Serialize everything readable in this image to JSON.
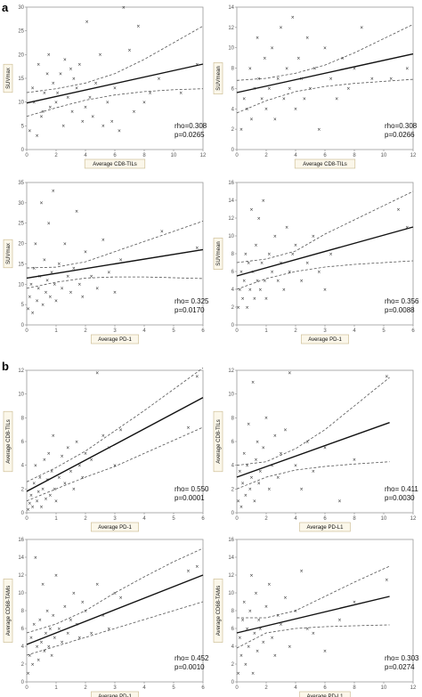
{
  "panel_labels": [
    {
      "text": "a"
    },
    {
      "text": "b"
    }
  ],
  "chart_data": [
    {
      "type": "scatter",
      "panel": "a",
      "xlabel": "Average CD8-TILs",
      "ylabel": "SUVmax",
      "xlim": [
        0,
        12
      ],
      "ylim": [
        0,
        30
      ],
      "xticks": [
        0,
        2,
        4,
        6,
        8,
        10,
        12
      ],
      "yticks": [
        0,
        5,
        10,
        15,
        20,
        25,
        30
      ],
      "fit": {
        "x": [
          0,
          12
        ],
        "y": [
          9.8,
          18.0
        ]
      },
      "ci_upper": {
        "x": [
          0,
          2,
          4,
          6,
          8,
          10,
          12
        ],
        "y": [
          12.0,
          12.8,
          14.0,
          16.0,
          19.0,
          22.5,
          26.0
        ]
      },
      "ci_lower": {
        "x": [
          0,
          2,
          4,
          6,
          8,
          10,
          12
        ],
        "y": [
          7.0,
          8.8,
          10.4,
          11.5,
          12.2,
          12.6,
          12.8
        ]
      },
      "annotations": [
        "rho=0.308",
        "p=0.0265"
      ],
      "points": {
        "x": [
          0.2,
          0.4,
          0.5,
          0.7,
          0.8,
          1.0,
          1.1,
          1.2,
          1.4,
          1.5,
          1.6,
          1.8,
          2.0,
          2.1,
          2.3,
          2.5,
          2.6,
          2.8,
          3.0,
          3.1,
          3.2,
          3.4,
          3.6,
          3.8,
          4.0,
          4.1,
          4.3,
          4.5,
          4.7,
          5.0,
          5.2,
          5.5,
          5.8,
          6.0,
          6.3,
          6.6,
          7.0,
          7.3,
          7.6,
          8.0,
          8.4,
          9.0,
          10.5,
          11.6
        ],
        "y": [
          4,
          13,
          10,
          3,
          18,
          7,
          8,
          12,
          16,
          20,
          9,
          14,
          10,
          12,
          16,
          5,
          19,
          11,
          17,
          8,
          15,
          13,
          18,
          6,
          9,
          27,
          11,
          7,
          14,
          20,
          5,
          10,
          6,
          13,
          4,
          30,
          21,
          8,
          26,
          10,
          12,
          15,
          12,
          18
        ]
      }
    },
    {
      "type": "scatter",
      "panel": "a",
      "xlabel": "Average CD8-TILs",
      "ylabel": "SUVmean",
      "xlim": [
        0,
        12
      ],
      "ylim": [
        0,
        14
      ],
      "xticks": [
        0,
        2,
        4,
        6,
        8,
        10,
        12
      ],
      "yticks": [
        0,
        2,
        4,
        6,
        8,
        10,
        12,
        14
      ],
      "fit": {
        "x": [
          0,
          12
        ],
        "y": [
          5.6,
          9.4
        ]
      },
      "ci_upper": {
        "x": [
          0,
          2,
          4,
          6,
          8,
          10,
          12
        ],
        "y": [
          6.8,
          7.0,
          7.5,
          8.3,
          9.5,
          10.9,
          12.3
        ]
      },
      "ci_lower": {
        "x": [
          0,
          2,
          4,
          6,
          8,
          10,
          12
        ],
        "y": [
          3.6,
          4.8,
          5.7,
          6.2,
          6.5,
          6.7,
          6.9
        ]
      },
      "annotations": [
        "rho=0.308",
        "p=0.0266"
      ],
      "points": {
        "x": [
          0.3,
          0.5,
          0.7,
          0.9,
          1.0,
          1.2,
          1.4,
          1.5,
          1.7,
          1.9,
          2.0,
          2.2,
          2.4,
          2.6,
          2.8,
          3.0,
          3.2,
          3.4,
          3.6,
          3.8,
          4.0,
          4.2,
          4.4,
          4.6,
          4.8,
          5.0,
          5.3,
          5.6,
          6.0,
          6.4,
          6.8,
          7.2,
          7.6,
          8.0,
          8.5,
          9.2,
          10.5,
          11.6
        ],
        "y": [
          2,
          5,
          4,
          8,
          3,
          6,
          11,
          7,
          5,
          9,
          4,
          6,
          10,
          3,
          7,
          12,
          5,
          8,
          6,
          13,
          4,
          9,
          7,
          5,
          11,
          6,
          8,
          2,
          10,
          7,
          5,
          9,
          6,
          8,
          12,
          7,
          7,
          8
        ]
      }
    },
    {
      "type": "scatter",
      "panel": "a",
      "xlabel": "Average PD-1",
      "ylabel": "SUVmax",
      "xlim": [
        0,
        6
      ],
      "ylim": [
        0,
        35
      ],
      "xticks": [
        0,
        1,
        2,
        3,
        4,
        5,
        6
      ],
      "yticks": [
        0,
        5,
        10,
        15,
        20,
        25,
        30,
        35
      ],
      "fit": {
        "x": [
          0,
          6
        ],
        "y": [
          11.5,
          18.5
        ]
      },
      "ci_upper": {
        "x": [
          0,
          1,
          2,
          3,
          4,
          5,
          6
        ],
        "y": [
          14.0,
          14.2,
          15.5,
          18.0,
          20.5,
          23.0,
          25.5
        ]
      },
      "ci_lower": {
        "x": [
          0,
          1,
          2,
          3,
          4,
          5,
          6
        ],
        "y": [
          9.0,
          10.5,
          11.5,
          11.8,
          11.8,
          11.6,
          11.4
        ]
      },
      "annotations": [
        "rho= 0.325",
        "p=0.0170"
      ],
      "points": {
        "x": [
          0.05,
          0.1,
          0.15,
          0.2,
          0.25,
          0.3,
          0.35,
          0.4,
          0.45,
          0.5,
          0.55,
          0.6,
          0.65,
          0.7,
          0.75,
          0.8,
          0.85,
          0.9,
          0.95,
          1.0,
          1.1,
          1.2,
          1.3,
          1.4,
          1.5,
          1.6,
          1.7,
          1.8,
          1.9,
          2.0,
          2.2,
          2.4,
          2.6,
          2.8,
          3.0,
          3.2,
          4.6,
          5.8
        ],
        "y": [
          4,
          7,
          10,
          3,
          14,
          20,
          6,
          9,
          12,
          30,
          5,
          16,
          8,
          11,
          25,
          7,
          13,
          33,
          10,
          6,
          15,
          9,
          20,
          12,
          8,
          14,
          28,
          10,
          7,
          18,
          12,
          9,
          21,
          13,
          8,
          16,
          23,
          19
        ]
      }
    },
    {
      "type": "scatter",
      "panel": "a",
      "xlabel": "Average PD-1",
      "ylabel": "SUVmean",
      "xlim": [
        0,
        6
      ],
      "ylim": [
        0,
        16
      ],
      "xticks": [
        0,
        1,
        2,
        3,
        4,
        5,
        6
      ],
      "yticks": [
        0,
        2,
        4,
        6,
        8,
        10,
        12,
        14,
        16
      ],
      "fit": {
        "x": [
          0,
          6
        ],
        "y": [
          5.5,
          11.0
        ]
      },
      "ci_upper": {
        "x": [
          0,
          1,
          2,
          3,
          4,
          5,
          6
        ],
        "y": [
          7.0,
          7.4,
          8.3,
          10.2,
          11.8,
          13.4,
          15.0
        ]
      },
      "ci_lower": {
        "x": [
          0,
          1,
          2,
          3,
          4,
          5,
          6
        ],
        "y": [
          4.0,
          5.2,
          6.0,
          6.5,
          6.8,
          7.0,
          7.2
        ]
      },
      "annotations": [
        "rho= 0.356",
        "p=0.0088"
      ],
      "points": {
        "x": [
          0.05,
          0.1,
          0.15,
          0.2,
          0.25,
          0.3,
          0.35,
          0.4,
          0.45,
          0.5,
          0.55,
          0.6,
          0.65,
          0.7,
          0.75,
          0.8,
          0.85,
          0.9,
          0.95,
          1.0,
          1.1,
          1.2,
          1.3,
          1.4,
          1.5,
          1.6,
          1.7,
          1.8,
          1.9,
          2.0,
          2.2,
          2.4,
          2.6,
          2.8,
          3.0,
          3.2,
          5.5,
          5.8
        ],
        "y": [
          2,
          4,
          6,
          3,
          5,
          8,
          2,
          7,
          4,
          13,
          6,
          3,
          9,
          5,
          12,
          4,
          7,
          14,
          5,
          3,
          8,
          6,
          10,
          5,
          7,
          4,
          11,
          6,
          8,
          9,
          5,
          7,
          10,
          6,
          4,
          8,
          13,
          11
        ]
      }
    },
    {
      "type": "scatter",
      "panel": "b",
      "xlabel": "Average PD-1",
      "ylabel": "Average CD8-TILs",
      "xlim": [
        0,
        6
      ],
      "ylim": [
        0,
        12
      ],
      "xticks": [
        0,
        1,
        2,
        3,
        4,
        5,
        6
      ],
      "yticks": [
        0,
        2,
        4,
        6,
        8,
        10,
        12
      ],
      "fit": {
        "x": [
          0,
          6
        ],
        "y": [
          1.8,
          9.7
        ]
      },
      "ci_upper": {
        "x": [
          0,
          1,
          2,
          3,
          4,
          5,
          6
        ],
        "y": [
          2.6,
          3.8,
          5.2,
          6.9,
          8.6,
          10.4,
          12.2
        ]
      },
      "ci_lower": {
        "x": [
          0,
          1,
          2,
          3,
          4,
          5,
          6
        ],
        "y": [
          1.0,
          2.0,
          3.0,
          3.9,
          5.0,
          6.1,
          7.2
        ]
      },
      "annotations": [
        "rho= 0.550",
        "p=0.0001"
      ],
      "points": {
        "x": [
          0.05,
          0.1,
          0.15,
          0.2,
          0.25,
          0.3,
          0.35,
          0.4,
          0.45,
          0.5,
          0.55,
          0.6,
          0.65,
          0.7,
          0.75,
          0.8,
          0.85,
          0.9,
          0.95,
          1.0,
          1.1,
          1.2,
          1.3,
          1.4,
          1.5,
          1.6,
          1.7,
          1.8,
          1.9,
          2.0,
          2.2,
          2.4,
          2.6,
          2.8,
          3.0,
          3.2,
          5.5,
          5.8
        ],
        "y": [
          0.3,
          0.8,
          1.5,
          0.5,
          2.5,
          4.0,
          1.0,
          1.8,
          3.0,
          0.5,
          2.0,
          4.5,
          1.2,
          2.8,
          5.0,
          1.5,
          3.5,
          6.5,
          2.0,
          1.0,
          3.0,
          4.8,
          2.5,
          5.5,
          3.5,
          2.0,
          6.0,
          4.0,
          3.0,
          5.0,
          4.5,
          11.8,
          6.5,
          5.5,
          4.0,
          7.0,
          7.2,
          11.5
        ]
      }
    },
    {
      "type": "scatter",
      "panel": "b",
      "xlabel": "Average PD-L1",
      "ylabel": "Average CD8-TILs",
      "xlim": [
        0,
        12
      ],
      "ylim": [
        0,
        12
      ],
      "xticks": [
        0,
        2,
        4,
        6,
        8,
        10,
        12
      ],
      "yticks": [
        0,
        2,
        4,
        6,
        8,
        10,
        12
      ],
      "fit": {
        "x": [
          0,
          10.4
        ],
        "y": [
          3.0,
          7.6
        ]
      },
      "ci_upper": {
        "x": [
          0,
          2,
          4,
          6,
          8,
          10.4
        ],
        "y": [
          4.0,
          4.3,
          5.4,
          7.0,
          9.0,
          11.4
        ]
      },
      "ci_lower": {
        "x": [
          0,
          2,
          4,
          6,
          8,
          10.4
        ],
        "y": [
          2.0,
          3.0,
          3.6,
          3.9,
          4.1,
          4.3
        ]
      },
      "annotations": [
        "rho= 0.411",
        "p=0.0030"
      ],
      "points": {
        "x": [
          0.1,
          0.2,
          0.3,
          0.4,
          0.5,
          0.6,
          0.7,
          0.8,
          0.9,
          1.0,
          1.1,
          1.2,
          1.3,
          1.4,
          1.5,
          1.6,
          1.8,
          2.0,
          2.2,
          2.4,
          2.6,
          2.8,
          3.0,
          3.3,
          3.6,
          4.0,
          4.4,
          4.8,
          5.2,
          6.0,
          7.0,
          8.0,
          10.2
        ],
        "y": [
          1.0,
          3.5,
          0.5,
          2.5,
          5.0,
          1.5,
          4.0,
          7.5,
          2.0,
          3.0,
          11.0,
          1.0,
          4.5,
          6.0,
          2.5,
          3.5,
          5.5,
          8.0,
          2.0,
          4.0,
          6.5,
          3.0,
          5.0,
          7.0,
          11.8,
          4.0,
          2.0,
          6.0,
          3.5,
          5.5,
          1.0,
          4.5,
          11.5
        ]
      }
    },
    {
      "type": "scatter",
      "panel": "b",
      "xlabel": "Average PD-1",
      "ylabel": "Average CD68-TAMs",
      "xlim": [
        0,
        6
      ],
      "ylim": [
        0,
        16
      ],
      "xticks": [
        0,
        1,
        2,
        3,
        4,
        5,
        6
      ],
      "yticks": [
        0,
        2,
        4,
        6,
        8,
        10,
        12,
        14,
        16
      ],
      "fit": {
        "x": [
          0,
          6
        ],
        "y": [
          4.2,
          12.0
        ]
      },
      "ci_upper": {
        "x": [
          0,
          1,
          2,
          3,
          4,
          5,
          6
        ],
        "y": [
          5.5,
          6.5,
          8.0,
          10.0,
          11.8,
          13.5,
          15.0
        ]
      },
      "ci_lower": {
        "x": [
          0,
          1,
          2,
          3,
          4,
          5,
          6
        ],
        "y": [
          3.0,
          4.0,
          5.0,
          6.0,
          7.0,
          8.0,
          9.0
        ]
      },
      "annotations": [
        "rho= 0.452",
        "p=0.0010"
      ],
      "points": {
        "x": [
          0.05,
          0.1,
          0.15,
          0.2,
          0.25,
          0.3,
          0.35,
          0.4,
          0.45,
          0.5,
          0.55,
          0.6,
          0.65,
          0.7,
          0.75,
          0.8,
          0.85,
          0.9,
          0.95,
          1.0,
          1.1,
          1.2,
          1.3,
          1.4,
          1.5,
          1.6,
          1.7,
          1.8,
          1.9,
          2.0,
          2.2,
          2.4,
          2.6,
          2.8,
          3.0,
          3.2,
          5.5,
          5.8
        ],
        "y": [
          1.0,
          3.0,
          5.0,
          2.0,
          6.5,
          14.0,
          4.0,
          2.5,
          7.0,
          4.5,
          11.0,
          3.5,
          5.5,
          8.0,
          4.0,
          6.0,
          3.0,
          7.5,
          5.0,
          12.0,
          6.0,
          4.5,
          8.5,
          5.5,
          7.0,
          10.0,
          6.5,
          5.0,
          9.0,
          8.0,
          5.5,
          11.0,
          7.5,
          6.0,
          10.0,
          9.5,
          12.5,
          13.0
        ]
      }
    },
    {
      "type": "scatter",
      "panel": "b",
      "xlabel": "Average PD-L1",
      "ylabel": "Average CD68-TAMs",
      "xlim": [
        0,
        12
      ],
      "ylim": [
        0,
        16
      ],
      "xticks": [
        0,
        2,
        4,
        6,
        8,
        10,
        12
      ],
      "yticks": [
        0,
        2,
        4,
        6,
        8,
        10,
        12,
        14,
        16
      ],
      "fit": {
        "x": [
          0,
          10.4
        ],
        "y": [
          5.5,
          9.6
        ]
      },
      "ci_upper": {
        "x": [
          0,
          2,
          4,
          6,
          8,
          10.4
        ],
        "y": [
          7.2,
          7.2,
          8.0,
          9.6,
          11.2,
          13.0
        ]
      },
      "ci_lower": {
        "x": [
          0,
          2,
          4,
          6,
          8,
          10.4
        ],
        "y": [
          3.8,
          5.5,
          6.0,
          6.2,
          6.3,
          6.4
        ]
      },
      "annotations": [
        "rho= 0.303",
        "p=0.0274"
      ],
      "points": {
        "x": [
          0.1,
          0.2,
          0.3,
          0.4,
          0.5,
          0.6,
          0.7,
          0.8,
          0.9,
          1.0,
          1.1,
          1.2,
          1.3,
          1.4,
          1.5,
          1.6,
          1.8,
          2.0,
          2.2,
          2.4,
          2.6,
          2.8,
          3.0,
          3.3,
          3.6,
          4.0,
          4.4,
          4.8,
          5.2,
          6.0,
          7.0,
          8.0,
          10.2
        ],
        "y": [
          1.0,
          5.0,
          3.0,
          7.0,
          9.0,
          2.0,
          6.0,
          4.0,
          8.0,
          12.0,
          1.0,
          5.5,
          10.0,
          3.5,
          7.0,
          6.0,
          4.5,
          8.5,
          11.0,
          5.0,
          3.0,
          7.5,
          6.5,
          9.5,
          4.0,
          8.0,
          12.5,
          6.0,
          5.5,
          3.5,
          7.0,
          9.0,
          11.5
        ]
      }
    }
  ]
}
